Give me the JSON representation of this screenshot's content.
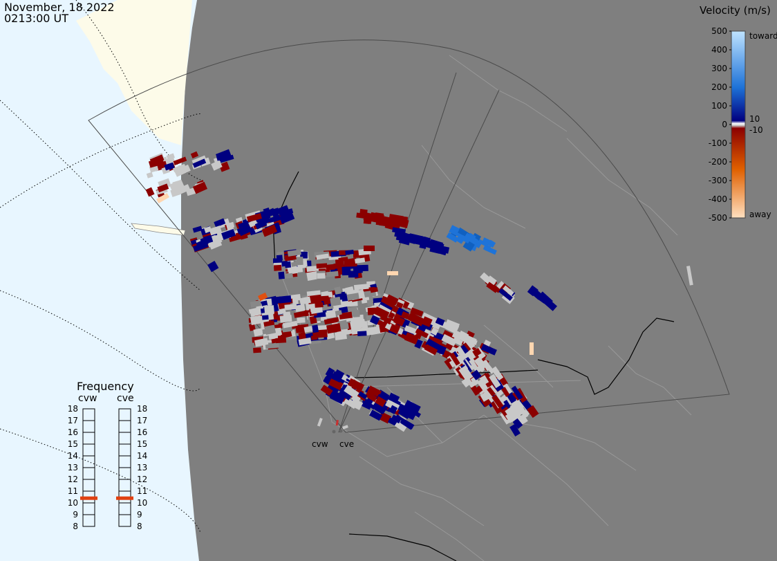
{
  "header": {
    "date": "November, 18 2022",
    "time": "0213:00 UT"
  },
  "legend": {
    "title": "Velocity (m/s)",
    "ticks": [
      "500",
      "400",
      "300",
      "200",
      "100",
      "0",
      "-100",
      "-200",
      "-300",
      "-400",
      "-500"
    ],
    "label_toward": "toward",
    "label_away": "away",
    "label_pos_small": "10",
    "label_neg_small": "-10",
    "colors": {
      "toward_max": "#bfe3ff",
      "toward_mid": "#1e73d8",
      "toward_low": "#000080",
      "away_low": "#8b0000",
      "away_mid": "#e06000",
      "away_max": "#ffe0c0",
      "ground_scatter": "#c8c8c8"
    }
  },
  "frequency": {
    "title": "Frequency",
    "radar_left": "cvw",
    "radar_right": "cve",
    "ticks": [
      "18",
      "17",
      "16",
      "15",
      "14",
      "13",
      "12",
      "11",
      "10",
      "9",
      "8"
    ],
    "value_cvw": 10.9,
    "value_cve": 10.9,
    "marker_color": "#e04010"
  },
  "radars": {
    "cvw": "cvw",
    "cve": "cve"
  },
  "map": {
    "background_color": "#7f7f7f",
    "ocean_color": "#e8f6ff",
    "land_night_color": "#fdfbe9",
    "border_color": "#999999"
  }
}
